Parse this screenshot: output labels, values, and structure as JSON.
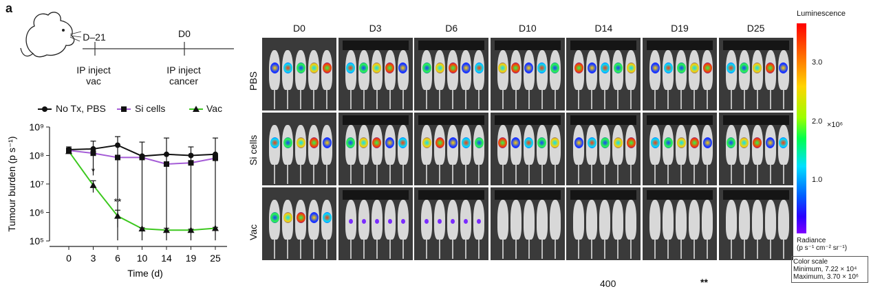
{
  "panel_letter": "a",
  "timeline": {
    "labels": [
      "D–21",
      "D0"
    ],
    "events": [
      {
        "line1": "IP inject",
        "line2": "vac"
      },
      {
        "line1": "IP inject",
        "line2": "cancer"
      }
    ]
  },
  "colors": {
    "no_tx": "#111111",
    "si_cells": "#a45bd6",
    "vac": "#3cc81e"
  },
  "chart_data": {
    "type": "line",
    "xlabel": "Time (d)",
    "ylabel": "Tumour burden (p s⁻¹)",
    "yscale": "log",
    "ylim": [
      100000,
      1000000000
    ],
    "yticks": [
      "10⁵",
      "10⁶",
      "10⁷",
      "10⁸",
      "10⁹"
    ],
    "categories": [
      "0",
      "3",
      "6",
      "10",
      "14",
      "19",
      "25"
    ],
    "series": [
      {
        "name": "No Tx, PBS",
        "marker": "circle",
        "values": [
          160000000,
          170000000,
          230000000,
          95000000,
          110000000,
          100000000,
          110000000
        ],
        "err": [
          40000000,
          150000000,
          230000000,
          200000000,
          300000000,
          100000000,
          300000000
        ]
      },
      {
        "name": "Si cells",
        "marker": "square",
        "values": [
          150000000,
          120000000,
          85000000,
          85000000,
          50000000,
          55000000,
          80000000
        ],
        "err": [
          30000000,
          20000000,
          15000000,
          15000000,
          8000000,
          10000000,
          20000000
        ]
      },
      {
        "name": "Vac",
        "marker": "triangle",
        "values": [
          140000000,
          9000000,
          750000,
          270000,
          240000,
          240000,
          280000
        ],
        "err": [
          10000000,
          4000000,
          450000,
          20000,
          40000,
          20000,
          20000
        ]
      }
    ],
    "annotations": [
      {
        "x": "3",
        "text": "*"
      },
      {
        "x": "6",
        "text": "**"
      }
    ],
    "grid": false,
    "legend": "top"
  },
  "imaging": {
    "columns": [
      "D0",
      "D3",
      "D6",
      "D10",
      "D14",
      "D19",
      "D25"
    ],
    "rows": [
      "PBS",
      "Si cells",
      "Vac"
    ]
  },
  "colorbar": {
    "title": "Luminescence",
    "ticks": [
      "3.0",
      "2.0",
      "1.0"
    ],
    "exponent": "×10⁶",
    "radiance_line1": "Radiance",
    "radiance_line2": "(p s⁻¹ cm⁻² sr⁻¹)",
    "scale_line1": "Color scale",
    "scale_line2": "Minimum, 7.22 × 10⁴",
    "scale_line3": "Maximum, 3.70 × 10⁶"
  },
  "bottom": {
    "value": "400",
    "sig": "**"
  }
}
